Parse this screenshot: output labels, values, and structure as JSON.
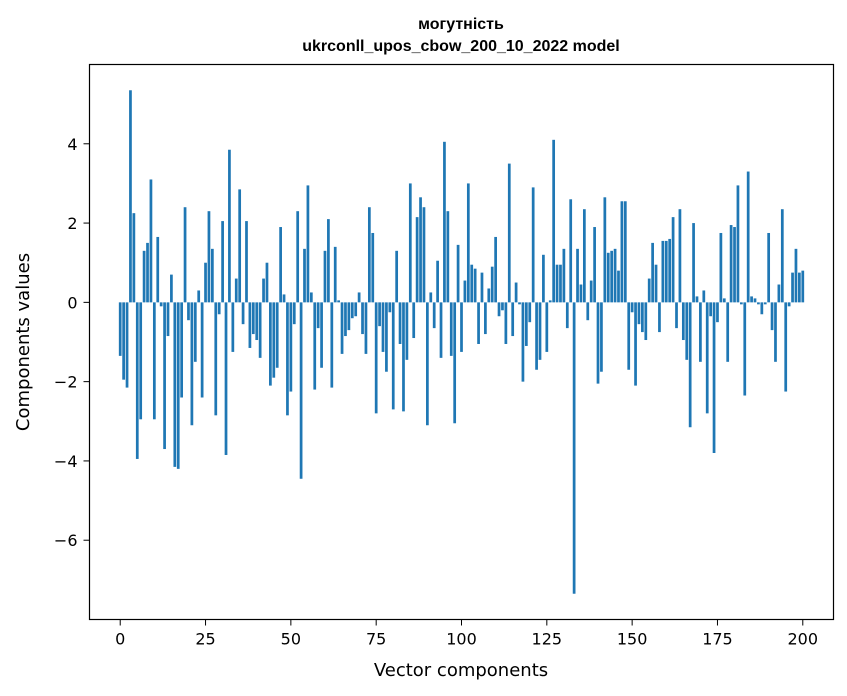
{
  "chart_data": {
    "type": "bar",
    "title": "могутність",
    "subtitle": "ukrconll_upos_cbow_200_10_2022 model",
    "xlabel": "Vector components",
    "ylabel": "Components values",
    "xlim": [
      -9,
      209
    ],
    "ylim": [
      -8.0,
      6.0
    ],
    "xticks": [
      0,
      25,
      50,
      75,
      100,
      125,
      150,
      175,
      200
    ],
    "yticks": [
      -6,
      -4,
      -2,
      0,
      2,
      4
    ],
    "grid": false,
    "bar_color": "#1f77b4",
    "values": [
      -1.35,
      -1.95,
      -2.15,
      5.35,
      2.25,
      -3.95,
      -2.95,
      1.3,
      1.5,
      3.1,
      -2.95,
      1.65,
      -0.1,
      -3.7,
      -0.85,
      0.7,
      -4.15,
      -4.2,
      -2.4,
      2.4,
      -0.45,
      -3.1,
      -1.5,
      0.3,
      -2.4,
      1.0,
      2.3,
      1.35,
      -2.85,
      -0.3,
      2.05,
      -3.85,
      3.85,
      -1.25,
      0.6,
      2.85,
      -0.55,
      2.05,
      -1.15,
      -0.8,
      -0.95,
      -1.4,
      0.6,
      1.0,
      -2.1,
      -1.9,
      -1.65,
      1.9,
      0.2,
      -2.85,
      -2.25,
      -0.55,
      2.3,
      -4.45,
      1.35,
      2.95,
      0.25,
      -2.2,
      -0.65,
      -1.65,
      1.3,
      2.1,
      -2.15,
      1.4,
      0.05,
      -1.3,
      -0.85,
      -0.7,
      -0.4,
      -0.35,
      0.25,
      -0.8,
      -1.3,
      2.4,
      1.75,
      -2.8,
      -0.6,
      -1.25,
      -1.75,
      -0.25,
      -2.7,
      1.3,
      -1.05,
      -2.75,
      -1.45,
      3.0,
      -0.9,
      2.15,
      2.65,
      2.4,
      -3.1,
      0.25,
      -0.65,
      1.05,
      -1.4,
      4.05,
      2.3,
      -1.35,
      -3.05,
      1.45,
      -1.25,
      0.55,
      3.0,
      0.95,
      0.85,
      -1.05,
      0.75,
      -0.8,
      0.35,
      0.9,
      1.65,
      -0.35,
      -0.2,
      -1.05,
      3.5,
      -0.85,
      0.5,
      -0.05,
      -2.0,
      -1.1,
      -0.5,
      2.9,
      -1.7,
      -1.45,
      1.2,
      -1.25,
      0.05,
      4.1,
      0.95,
      0.95,
      1.35,
      -0.65,
      2.6,
      -7.35,
      1.35,
      0.45,
      2.35,
      -0.45,
      0.55,
      1.9,
      -2.05,
      -1.75,
      2.65,
      1.25,
      1.3,
      1.35,
      0.8,
      2.55,
      2.55,
      -1.7,
      -0.25,
      -2.1,
      -0.55,
      -0.75,
      -0.95,
      0.6,
      1.5,
      0.95,
      -0.75,
      1.55,
      1.55,
      1.6,
      2.15,
      -0.65,
      2.35,
      -0.95,
      -1.45,
      -3.15,
      2.0,
      0.15,
      -1.5,
      0.3,
      -2.8,
      -0.35,
      -3.8,
      -0.5,
      1.75,
      0.1,
      -1.5,
      1.95,
      1.9,
      2.95,
      -0.05,
      -2.35,
      3.3,
      0.15,
      0.1,
      -0.05,
      -0.3,
      -0.05,
      1.75,
      -0.7,
      -1.5,
      0.45,
      2.35,
      -2.25,
      -0.1,
      0.75,
      1.35,
      0.75,
      0.8
    ]
  }
}
